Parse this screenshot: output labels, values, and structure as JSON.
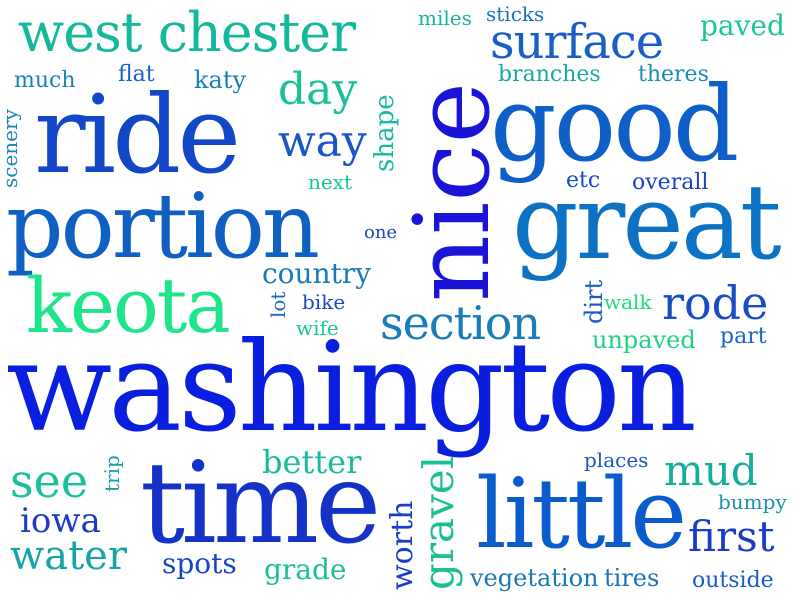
{
  "words": [
    {
      "text": "washington",
      "color": "#0a1ee0"
    },
    {
      "text": "nice",
      "color": "#1a14d8"
    },
    {
      "text": "good",
      "color": "#0e5fc8"
    },
    {
      "text": "ride",
      "color": "#1247c8"
    },
    {
      "text": "portion",
      "color": "#1060c4"
    },
    {
      "text": "great",
      "color": "#0c72c4"
    },
    {
      "text": "time",
      "color": "#1432c8"
    },
    {
      "text": "little",
      "color": "#0a5ccc"
    },
    {
      "text": "keota",
      "color": "#1ee58a"
    },
    {
      "text": "west chester",
      "color": "#14b89a"
    },
    {
      "text": "surface",
      "color": "#1a5ec8"
    },
    {
      "text": "section",
      "color": "#1a7cb8"
    },
    {
      "text": "rode",
      "color": "#1a4cc4"
    },
    {
      "text": "gravel",
      "color": "#18c092"
    },
    {
      "text": "mud",
      "color": "#16ad9a"
    },
    {
      "text": "first",
      "color": "#1a3cc8"
    },
    {
      "text": "see",
      "color": "#1ac09a"
    },
    {
      "text": "water",
      "color": "#16a5a4"
    },
    {
      "text": "iowa",
      "color": "#1a3cc4"
    },
    {
      "text": "day",
      "color": "#1ac09a"
    },
    {
      "text": "way",
      "color": "#1a56c8"
    },
    {
      "text": "better",
      "color": "#18bba0"
    },
    {
      "text": "country",
      "color": "#1a7ab8"
    },
    {
      "text": "paved",
      "color": "#18c79a"
    },
    {
      "text": "shape",
      "color": "#18b8a4"
    },
    {
      "text": "worth",
      "color": "#1a3cc8"
    },
    {
      "text": "grade",
      "color": "#1ac09a"
    },
    {
      "text": "spots",
      "color": "#1a44c8"
    },
    {
      "text": "vegetation",
      "color": "#1a78b8"
    },
    {
      "text": "tires",
      "color": "#1a70bc"
    },
    {
      "text": "outside",
      "color": "#1a5cc4"
    },
    {
      "text": "bumpy",
      "color": "#1a90b0"
    },
    {
      "text": "places",
      "color": "#1a58c4"
    },
    {
      "text": "unpaved",
      "color": "#1ed27e"
    },
    {
      "text": "part",
      "color": "#1a66c0"
    },
    {
      "text": "walk",
      "color": "#1ed87e"
    },
    {
      "text": "dirt",
      "color": "#1a5cc4"
    },
    {
      "text": "overall",
      "color": "#1a40c8"
    },
    {
      "text": "etc",
      "color": "#1a48c8"
    },
    {
      "text": "branches",
      "color": "#1aa8a4"
    },
    {
      "text": "theres",
      "color": "#1a8cb4"
    },
    {
      "text": "miles",
      "color": "#18b4a2"
    },
    {
      "text": "sticks",
      "color": "#1a72bc"
    },
    {
      "text": "much",
      "color": "#1a82b6"
    },
    {
      "text": "flat",
      "color": "#1a60c4"
    },
    {
      "text": "katy",
      "color": "#1a7eb8"
    },
    {
      "text": "scenery",
      "color": "#1a86b4"
    },
    {
      "text": "next",
      "color": "#18c49a"
    },
    {
      "text": "one",
      "color": "#1a44c8"
    },
    {
      "text": "bike",
      "color": "#1a48c8"
    },
    {
      "text": "wife",
      "color": "#18c89a"
    },
    {
      "text": "lot",
      "color": "#1a6cc0"
    },
    {
      "text": "trip",
      "color": "#1a9cac"
    }
  ]
}
